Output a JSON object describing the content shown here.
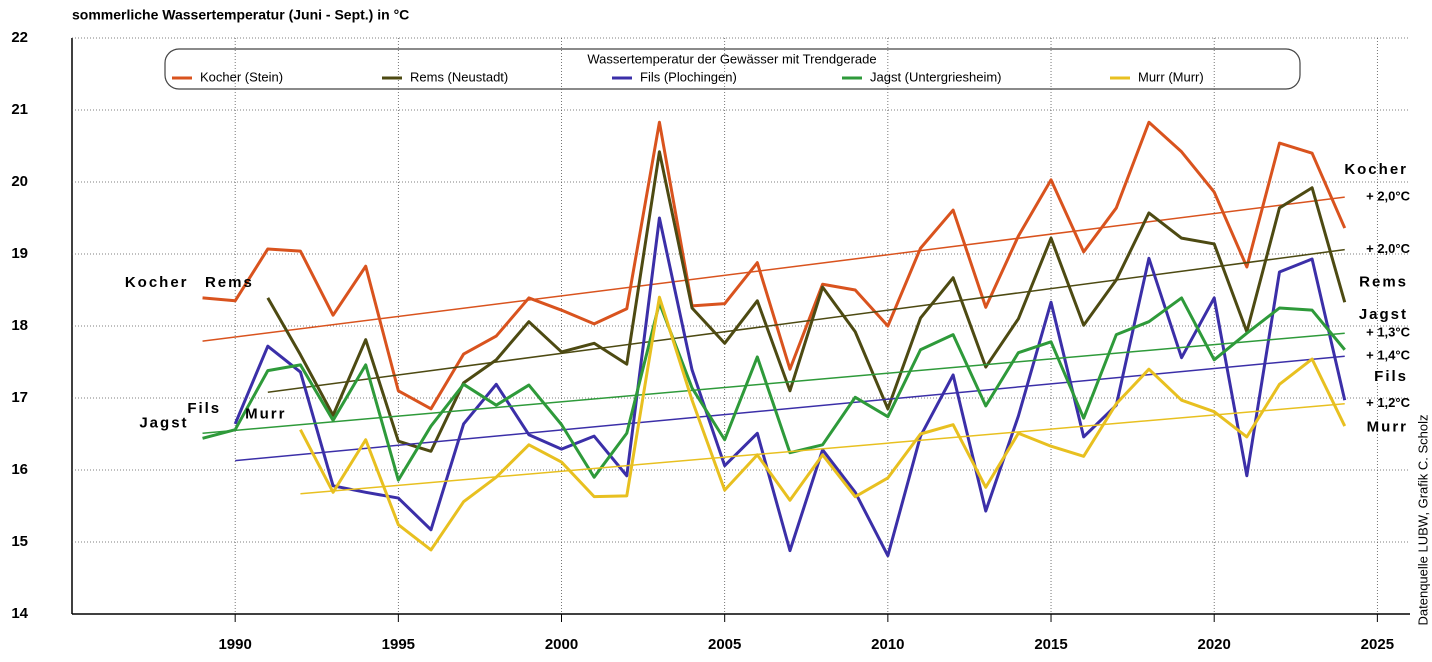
{
  "chart_data": {
    "type": "line",
    "title": "sommerliche Wassertemperatur (Juni - Sept.)  in °C",
    "legend_title": "Wassertemperatur der Gewässer mit Trendgerade",
    "source": "Datenquelle LUBW, Grafik C. Scholz",
    "x": [
      1989,
      1990,
      1991,
      1992,
      1993,
      1994,
      1995,
      1996,
      1997,
      1998,
      1999,
      2000,
      2001,
      2002,
      2003,
      2004,
      2005,
      2006,
      2007,
      2008,
      2009,
      2010,
      2011,
      2012,
      2013,
      2014,
      2015,
      2016,
      2017,
      2018,
      2019,
      2020,
      2021,
      2022,
      2023,
      2024
    ],
    "xlim": [
      1985,
      2026
    ],
    "xticks": [
      1990,
      1995,
      2000,
      2005,
      2010,
      2015,
      2020,
      2025
    ],
    "ylim": [
      14,
      22
    ],
    "yticks": [
      14,
      15,
      16,
      17,
      18,
      19,
      20,
      21,
      22
    ],
    "grid": true,
    "series": [
      {
        "name": "Kocher (Stein)",
        "short_name": "Kocher",
        "change": "+ 2,0°C",
        "color": "#d9531e",
        "values": [
          18.39,
          18.35,
          19.07,
          19.04,
          18.15,
          18.83,
          17.1,
          16.85,
          17.61,
          17.86,
          18.39,
          18.22,
          18.03,
          18.24,
          20.83,
          18.28,
          18.31,
          18.88,
          17.4,
          18.58,
          18.5,
          18.0,
          19.08,
          19.61,
          18.26,
          19.25,
          20.03,
          19.03,
          19.64,
          20.83,
          20.42,
          19.86,
          18.82,
          20.54,
          20.4,
          19.36
        ],
        "trend": {
          "x": [
            1989,
            2024
          ],
          "values": [
            17.79,
            19.79
          ]
        }
      },
      {
        "name": "Rems (Neustadt)",
        "short_name": "Rems",
        "change": "+ 2,0°C",
        "color": "#4d4a12",
        "values": [
          null,
          null,
          18.39,
          17.6,
          16.76,
          17.81,
          16.4,
          16.26,
          17.21,
          17.53,
          18.06,
          17.64,
          17.76,
          17.47,
          20.42,
          18.25,
          17.76,
          18.35,
          17.1,
          18.54,
          17.92,
          16.85,
          18.11,
          18.67,
          17.43,
          18.1,
          19.22,
          18.01,
          18.64,
          19.57,
          19.22,
          19.14,
          17.92,
          19.64,
          19.92,
          18.33
        ],
        "trend": {
          "x": [
            1991,
            2024
          ],
          "values": [
            17.08,
            19.06
          ]
        }
      },
      {
        "name": "Fils (Plochingen)",
        "short_name": "Fils",
        "change": "+ 1,4°C",
        "color": "#3b2fa8",
        "values": [
          null,
          16.64,
          17.72,
          17.36,
          15.78,
          15.69,
          15.61,
          15.17,
          16.64,
          17.19,
          16.49,
          16.29,
          16.47,
          15.92,
          19.5,
          17.39,
          16.06,
          16.51,
          14.88,
          16.28,
          15.69,
          14.81,
          16.47,
          17.32,
          15.43,
          16.75,
          18.33,
          16.46,
          16.9,
          18.94,
          17.56,
          18.39,
          15.92,
          18.75,
          18.93,
          16.97
        ],
        "trend": {
          "x": [
            1990,
            2024
          ],
          "values": [
            16.13,
            17.58
          ]
        }
      },
      {
        "name": "Jagst (Untergriesheim)",
        "short_name": "Jagst",
        "change": "+ 1,3°C",
        "color": "#2e9a3a",
        "values": [
          16.44,
          16.56,
          17.38,
          17.46,
          16.69,
          17.46,
          15.86,
          16.61,
          17.19,
          16.9,
          17.18,
          16.63,
          15.9,
          16.51,
          18.32,
          17.14,
          16.42,
          17.57,
          16.24,
          16.35,
          17.01,
          16.74,
          17.67,
          17.88,
          16.89,
          17.63,
          17.78,
          16.72,
          17.88,
          18.06,
          18.39,
          17.53,
          17.9,
          18.25,
          18.22,
          17.67
        ],
        "trend": {
          "x": [
            1989,
            2024
          ],
          "values": [
            16.51,
            17.9
          ]
        }
      },
      {
        "name": "Murr (Murr)",
        "short_name": "Murr",
        "change": "+ 1,2°C",
        "color": "#e8c020",
        "values": [
          null,
          null,
          null,
          16.56,
          15.69,
          16.42,
          15.24,
          14.89,
          15.56,
          15.9,
          16.35,
          16.11,
          15.63,
          15.64,
          18.4,
          16.97,
          15.72,
          16.21,
          15.58,
          16.21,
          15.63,
          15.89,
          16.5,
          16.63,
          15.76,
          16.51,
          16.33,
          16.19,
          16.92,
          17.4,
          16.97,
          16.81,
          16.46,
          17.19,
          17.54,
          16.61
        ],
        "trend": {
          "x": [
            1992,
            2024
          ],
          "values": [
            15.67,
            16.92
          ]
        }
      }
    ]
  }
}
